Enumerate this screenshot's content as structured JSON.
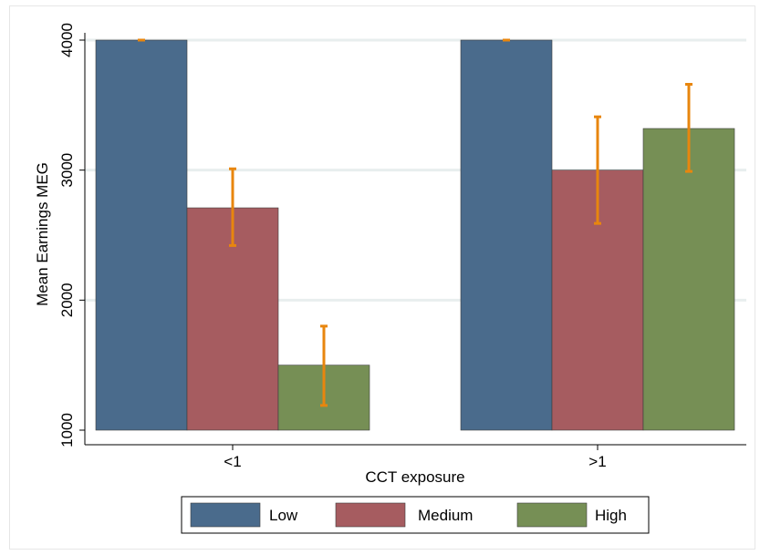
{
  "chart_data": {
    "type": "bar",
    "xlabel": "CCT exposure",
    "ylabel": "Mean Earnings MEG",
    "categories": [
      "<1",
      ">1"
    ],
    "ylim": [
      1000,
      4000
    ],
    "yticks": [
      1000,
      2000,
      3000,
      4000
    ],
    "grid": true,
    "legend_position": "bottom",
    "series": [
      {
        "name": "Low",
        "color": "#4a6b8c",
        "values": [
          4000,
          4000
        ],
        "error_low": [
          4000,
          4000
        ],
        "error_high": [
          4000,
          4000
        ]
      },
      {
        "name": "Medium",
        "color": "#a65c60",
        "values": [
          2710,
          3000
        ],
        "error_low": [
          2420,
          2590
        ],
        "error_high": [
          3010,
          3410
        ]
      },
      {
        "name": "High",
        "color": "#768f55",
        "values": [
          1500,
          3320
        ],
        "error_low": [
          1190,
          2990
        ],
        "error_high": [
          1800,
          3660
        ]
      }
    ],
    "error_bar_color": "#e8860e"
  }
}
